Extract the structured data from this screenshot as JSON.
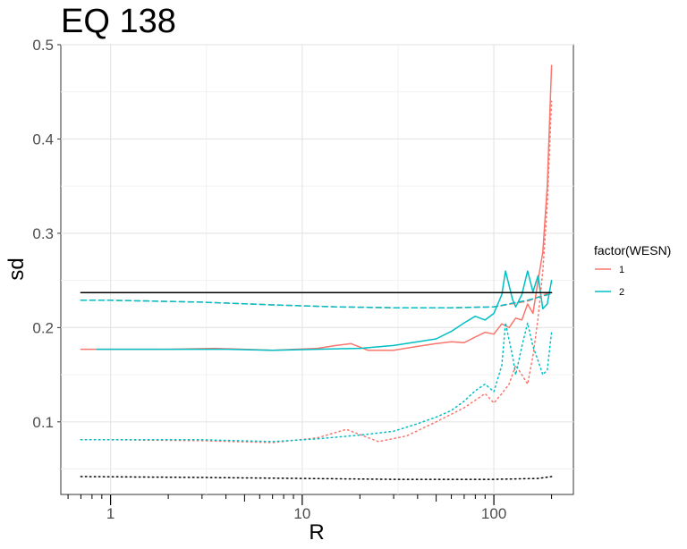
{
  "chart_data": {
    "type": "line",
    "title": "EQ 138",
    "xlabel": "R",
    "ylabel": "sd",
    "x_scale": "log10",
    "xlim": [
      0.55,
      260
    ],
    "ylim": [
      0.023,
      0.5
    ],
    "x_ticks": [
      1,
      10,
      100
    ],
    "x_tick_labels": [
      "1",
      "10",
      "100"
    ],
    "y_ticks": [
      0.1,
      0.2,
      0.3,
      0.4,
      0.5
    ],
    "y_tick_labels": [
      "0.1",
      "0.2",
      "0.3",
      "0.4",
      "0.5"
    ],
    "grid": true,
    "legend": {
      "title": "factor(WESN)",
      "position": "right",
      "entries": [
        {
          "label": "1",
          "color": "#F8766D"
        },
        {
          "label": "2",
          "color": "#00BFC4"
        }
      ]
    },
    "series": [
      {
        "group": "1",
        "color": "#F8766D",
        "linetype": "solid",
        "x": [
          0.7,
          1,
          2,
          3.5,
          7,
          12,
          15,
          18,
          22,
          30,
          40,
          50,
          60,
          70,
          80,
          90,
          100,
          110,
          120,
          130,
          140,
          150,
          160,
          170,
          180,
          190,
          200
        ],
        "y": [
          0.177,
          0.177,
          0.177,
          0.178,
          0.176,
          0.178,
          0.181,
          0.183,
          0.176,
          0.176,
          0.18,
          0.183,
          0.185,
          0.184,
          0.19,
          0.195,
          0.193,
          0.204,
          0.2,
          0.21,
          0.208,
          0.225,
          0.215,
          0.25,
          0.28,
          0.35,
          0.478
        ]
      },
      {
        "group": "2",
        "color": "#00BFC4",
        "linetype": "solid",
        "x": [
          0.85,
          1,
          2,
          4,
          7,
          12,
          20,
          30,
          40,
          50,
          60,
          70,
          80,
          90,
          100,
          110,
          115,
          125,
          130,
          140,
          150,
          160,
          170,
          180,
          190,
          200
        ],
        "y": [
          0.177,
          0.177,
          0.177,
          0.177,
          0.176,
          0.177,
          0.178,
          0.181,
          0.185,
          0.188,
          0.196,
          0.205,
          0.212,
          0.208,
          0.215,
          0.235,
          0.26,
          0.23,
          0.222,
          0.235,
          0.26,
          0.238,
          0.255,
          0.22,
          0.225,
          0.25
        ]
      },
      {
        "group": "1",
        "color": "#F8766D",
        "linetype": "dashed",
        "x": [
          0.7,
          1,
          3,
          7,
          15,
          30,
          60,
          100,
          150,
          200
        ],
        "y": [
          0.229,
          0.229,
          0.227,
          0.224,
          0.222,
          0.221,
          0.221,
          0.222,
          0.228,
          0.238
        ]
      },
      {
        "group": "2",
        "color": "#00BFC4",
        "linetype": "dashed",
        "x": [
          0.7,
          1,
          3,
          7,
          15,
          30,
          60,
          100,
          150,
          200
        ],
        "y": [
          0.229,
          0.229,
          0.227,
          0.224,
          0.222,
          0.221,
          0.221,
          0.222,
          0.229,
          0.236
        ]
      },
      {
        "group": "1",
        "color": "#F8766D",
        "linetype": "dotted",
        "x": [
          0.7,
          1,
          3,
          7,
          12,
          17,
          25,
          35,
          50,
          70,
          90,
          100,
          110,
          120,
          130,
          140,
          150,
          160,
          170,
          180,
          190,
          200
        ],
        "y": [
          0.081,
          0.081,
          0.08,
          0.078,
          0.083,
          0.092,
          0.079,
          0.085,
          0.1,
          0.115,
          0.13,
          0.12,
          0.13,
          0.14,
          0.16,
          0.15,
          0.14,
          0.17,
          0.21,
          0.26,
          0.33,
          0.44
        ]
      },
      {
        "group": "2",
        "color": "#00BFC4",
        "linetype": "dotted",
        "x": [
          0.7,
          1,
          3,
          7,
          12,
          20,
          30,
          40,
          50,
          60,
          70,
          80,
          90,
          100,
          110,
          115,
          125,
          130,
          140,
          150,
          160,
          170,
          180,
          190,
          200
        ],
        "y": [
          0.081,
          0.081,
          0.081,
          0.079,
          0.082,
          0.086,
          0.09,
          0.098,
          0.105,
          0.112,
          0.122,
          0.133,
          0.14,
          0.132,
          0.16,
          0.205,
          0.17,
          0.15,
          0.18,
          0.205,
          0.18,
          0.165,
          0.15,
          0.155,
          0.195
        ]
      },
      {
        "group": "ref",
        "color": "#000000",
        "linetype": "solid",
        "x": [
          0.7,
          200
        ],
        "y": [
          0.237,
          0.237
        ]
      },
      {
        "group": "ref",
        "color": "#000000",
        "linetype": "dotted",
        "x": [
          0.7,
          3,
          10,
          30,
          100,
          170,
          200
        ],
        "y": [
          0.042,
          0.041,
          0.04,
          0.039,
          0.039,
          0.04,
          0.042
        ]
      }
    ]
  }
}
